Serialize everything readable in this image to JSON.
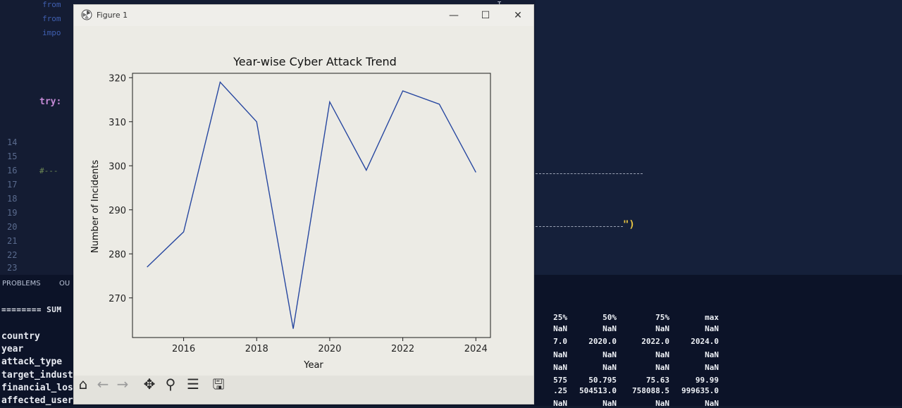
{
  "editor": {
    "code_fragments": [
      "from",
      "from",
      "impo"
    ],
    "try_keyword": "try:",
    "comment_fragment": "#---",
    "paren_close": "\")",
    "line_numbers": [
      "14",
      "15",
      "16",
      "17",
      "18",
      "19",
      "20",
      "21",
      "22",
      "23"
    ]
  },
  "panel": {
    "tabs": [
      "PROBLEMS",
      "OU"
    ],
    "summary_heading": "======== SUM",
    "row_labels": [
      "country",
      "year",
      "attack_type",
      "target_indust",
      "financial_los",
      "affected_user"
    ],
    "columns": [
      "25%",
      "50%",
      "75%",
      "max"
    ],
    "rows": [
      [
        "NaN",
        "NaN",
        "NaN",
        "NaN"
      ],
      [
        "7.0",
        "2020.0",
        "2022.0",
        "2024.0"
      ],
      [
        "NaN",
        "NaN",
        "NaN",
        "NaN"
      ],
      [
        "NaN",
        "NaN",
        "NaN",
        "NaN"
      ],
      [
        "575",
        "50.795",
        "75.63",
        "99.99"
      ],
      [
        ".25",
        "504513.0",
        "758088.5",
        "999635.0"
      ],
      [
        "NaN",
        "NaN",
        "NaN",
        "NaN"
      ]
    ]
  },
  "figure_window": {
    "title": "Figure 1",
    "minimize_glyph": "—",
    "maximize_glyph": "☐",
    "close_glyph": "✕"
  },
  "toolbar": {
    "home_icon": "⌂",
    "back_icon": "←",
    "forward_icon": "→",
    "pan_icon": "✥",
    "zoom_icon": "⚲",
    "configure_icon": "☰",
    "save_icon": "🖫"
  },
  "chart_data": {
    "type": "line",
    "title": "Year-wise Cyber Attack Trend",
    "xlabel": "Year",
    "ylabel": "Number of Incidents",
    "x": [
      2015,
      2016,
      2017,
      2018,
      2019,
      2020,
      2021,
      2022,
      2023,
      2024
    ],
    "series": [
      {
        "values": [
          277,
          285,
          319,
          310,
          263,
          314.5,
          299,
          317,
          314,
          298.5
        ],
        "color": "#2747a0"
      }
    ],
    "xticks": [
      2016,
      2018,
      2020,
      2022,
      2024
    ],
    "yticks": [
      270,
      280,
      290,
      300,
      310,
      320
    ],
    "xlim": [
      2014.6,
      2024.4
    ],
    "ylim": [
      261,
      321
    ],
    "grid": false
  }
}
